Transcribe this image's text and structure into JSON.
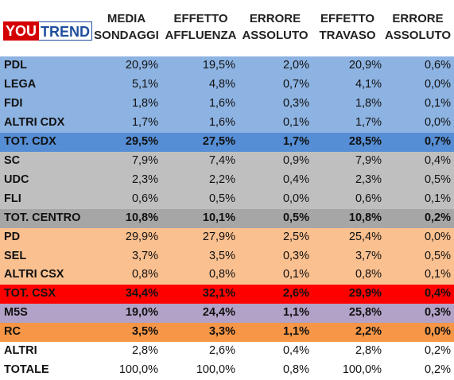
{
  "brand": {
    "you": "YOU",
    "trend": "TREND"
  },
  "headers": [
    {
      "line1": "MEDIA",
      "line2": "SONDAGGI"
    },
    {
      "line1": "EFFETTO",
      "line2": "AFFLUENZA"
    },
    {
      "line1": "ERRORE",
      "line2": "ASSOLUTO"
    },
    {
      "line1": "EFFETTO",
      "line2": "TRAVASO"
    },
    {
      "line1": "ERRORE",
      "line2": "ASSOLUTO"
    }
  ],
  "colors": {
    "cdx_rows": "#8db3e2",
    "cdx_total": "#558ed5",
    "centro_rows": "#bfbfbf",
    "centro_total": "#a6a6a6",
    "csx_rows": "#fac090",
    "csx_total": "#ff0000",
    "m5s": "#b3a2c7",
    "rc": "#f79646",
    "plain": "#ffffff"
  },
  "rows": [
    {
      "label": "PDL",
      "values": [
        "20,9%",
        "19,5%",
        "2,0%",
        "20,9%",
        "0,6%"
      ],
      "color": "#8db3e2",
      "bold": false
    },
    {
      "label": "LEGA",
      "values": [
        "5,1%",
        "4,8%",
        "0,7%",
        "4,1%",
        "0,0%"
      ],
      "color": "#8db3e2",
      "bold": false
    },
    {
      "label": "FDI",
      "values": [
        "1,8%",
        "1,6%",
        "0,3%",
        "1,8%",
        "0,1%"
      ],
      "color": "#8db3e2",
      "bold": false
    },
    {
      "label": "ALTRI CDX",
      "values": [
        "1,7%",
        "1,6%",
        "0,1%",
        "1,7%",
        "0,0%"
      ],
      "color": "#8db3e2",
      "bold": false
    },
    {
      "label": "TOT. CDX",
      "values": [
        "29,5%",
        "27,5%",
        "1,7%",
        "28,5%",
        "0,7%"
      ],
      "color": "#558ed5",
      "bold": true
    },
    {
      "label": "SC",
      "values": [
        "7,9%",
        "7,4%",
        "0,9%",
        "7,9%",
        "0,4%"
      ],
      "color": "#bfbfbf",
      "bold": false
    },
    {
      "label": "UDC",
      "values": [
        "2,3%",
        "2,2%",
        "0,4%",
        "2,3%",
        "0,5%"
      ],
      "color": "#bfbfbf",
      "bold": false
    },
    {
      "label": "FLI",
      "values": [
        "0,6%",
        "0,5%",
        "0,0%",
        "0,6%",
        "0,1%"
      ],
      "color": "#bfbfbf",
      "bold": false
    },
    {
      "label": "TOT. CENTRO",
      "values": [
        "10,8%",
        "10,1%",
        "0,5%",
        "10,8%",
        "0,2%"
      ],
      "color": "#a6a6a6",
      "bold": true
    },
    {
      "label": "PD",
      "values": [
        "29,9%",
        "27,9%",
        "2,5%",
        "25,4%",
        "0,0%"
      ],
      "color": "#fac090",
      "bold": false
    },
    {
      "label": "SEL",
      "values": [
        "3,7%",
        "3,5%",
        "0,3%",
        "3,7%",
        "0,5%"
      ],
      "color": "#fac090",
      "bold": false
    },
    {
      "label": "ALTRI CSX",
      "values": [
        "0,8%",
        "0,8%",
        "0,1%",
        "0,8%",
        "0,1%"
      ],
      "color": "#fac090",
      "bold": false
    },
    {
      "label": "TOT. CSX",
      "values": [
        "34,4%",
        "32,1%",
        "2,6%",
        "29,9%",
        "0,4%"
      ],
      "color": "#ff0000",
      "bold": true
    },
    {
      "label": "M5S",
      "values": [
        "19,0%",
        "24,4%",
        "1,1%",
        "25,8%",
        "0,3%"
      ],
      "color": "#b3a2c7",
      "bold": true
    },
    {
      "label": "RC",
      "values": [
        "3,5%",
        "3,3%",
        "1,1%",
        "2,2%",
        "0,0%"
      ],
      "color": "#f79646",
      "bold": true
    },
    {
      "label": "ALTRI",
      "values": [
        "2,8%",
        "2,6%",
        "0,4%",
        "2,8%",
        "0,2%"
      ],
      "color": "#ffffff",
      "bold": false
    },
    {
      "label": "TOTALE",
      "values": [
        "100,0%",
        "100,0%",
        "0,8%",
        "100,0%",
        "0,2%"
      ],
      "color": "#ffffff",
      "bold": false
    }
  ]
}
